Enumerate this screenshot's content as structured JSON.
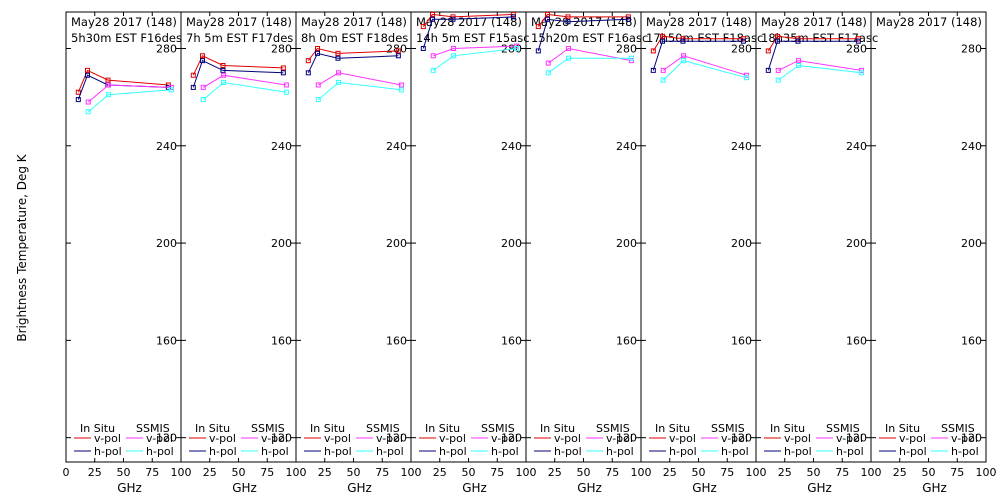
{
  "chart_data": {
    "type": "line",
    "ylabel": "Brightness Temperature, Deg K",
    "xlabel": "GHz",
    "xlim": [
      0,
      100
    ],
    "ylim": [
      110,
      295
    ],
    "xticks": [
      "0",
      "25",
      "50",
      "75",
      "100"
    ],
    "yticks": [
      120,
      160,
      200,
      240,
      280
    ],
    "legend": {
      "in_situ": "In Situ",
      "ssmis": "SSMIS",
      "vpol": "v-pol",
      "hpol": "h-pol"
    },
    "colors": {
      "insitu_v": "#e00000",
      "insitu_h": "#00007a",
      "ssmis_v": "#ff33ff",
      "ssmis_h": "#33ffff"
    },
    "panels": [
      {
        "line1": "May28 2017 (148)",
        "line2": "5h30m EST F16des",
        "insitu_v": {
          "x": [
            10.7,
            18.7,
            36.5,
            89.0
          ],
          "y": [
            262,
            271,
            267,
            265
          ]
        },
        "insitu_h": {
          "x": [
            10.7,
            18.7,
            36.5,
            89.0
          ],
          "y": [
            259,
            269,
            265,
            264
          ]
        },
        "ssmis_v": {
          "x": [
            19.35,
            37.0,
            91.655
          ],
          "y": [
            258,
            265,
            264
          ]
        },
        "ssmis_h": {
          "x": [
            19.35,
            37.0,
            91.655
          ],
          "y": [
            254,
            261,
            263
          ]
        }
      },
      {
        "line1": "May28 2017 (148)",
        "line2": "7h 5m  EST F17des",
        "insitu_v": {
          "x": [
            10.7,
            18.7,
            36.5,
            89.0
          ],
          "y": [
            269,
            277,
            273,
            272
          ]
        },
        "insitu_h": {
          "x": [
            10.7,
            18.7,
            36.5,
            89.0
          ],
          "y": [
            264,
            275,
            271,
            270
          ]
        },
        "ssmis_v": {
          "x": [
            19.35,
            37.0,
            91.655
          ],
          "y": [
            264,
            269,
            265
          ]
        },
        "ssmis_h": {
          "x": [
            19.35,
            37.0,
            91.655
          ],
          "y": [
            259,
            266,
            262
          ]
        }
      },
      {
        "line1": "May28 2017 (148)",
        "line2": "8h 0m  EST F18des",
        "insitu_v": {
          "x": [
            10.7,
            18.7,
            36.5,
            89.0
          ],
          "y": [
            275,
            280,
            278,
            279
          ]
        },
        "insitu_h": {
          "x": [
            10.7,
            18.7,
            36.5,
            89.0
          ],
          "y": [
            270,
            278,
            276,
            277
          ]
        },
        "ssmis_v": {
          "x": [
            19.35,
            37.0,
            91.655
          ],
          "y": [
            265,
            270,
            265
          ]
        },
        "ssmis_h": {
          "x": [
            19.35,
            37.0,
            91.655
          ],
          "y": [
            259,
            266,
            263
          ]
        }
      },
      {
        "line1": "May28 2017 (148)",
        "line2": "14h 5m  EST F15asc",
        "insitu_v": {
          "x": [
            10.7,
            18.7,
            36.5,
            89.0
          ],
          "y": [
            289,
            294,
            293,
            294
          ]
        },
        "insitu_h": {
          "x": [
            10.7,
            18.7,
            36.5,
            89.0
          ],
          "y": [
            280,
            292,
            292,
            293
          ]
        },
        "ssmis_v": {
          "x": [
            19.35,
            37.0,
            91.655
          ],
          "y": [
            277,
            280,
            281
          ]
        },
        "ssmis_h": {
          "x": [
            19.35,
            37.0,
            91.655
          ],
          "y": [
            271,
            277,
            280
          ]
        }
      },
      {
        "line1": "May28 2017 (148)",
        "line2": "15h20m  EST F16asc",
        "insitu_v": {
          "x": [
            10.7,
            18.7,
            36.5,
            89.0
          ],
          "y": [
            289,
            294,
            293,
            293
          ]
        },
        "insitu_h": {
          "x": [
            10.7,
            18.7,
            36.5,
            89.0
          ],
          "y": [
            279,
            292,
            291,
            292
          ]
        },
        "ssmis_v": {
          "x": [
            19.35,
            37.0,
            91.655
          ],
          "y": [
            274,
            280,
            275
          ]
        },
        "ssmis_h": {
          "x": [
            19.35,
            37.0,
            91.655
          ],
          "y": [
            270,
            276,
            276
          ]
        }
      },
      {
        "line1": "May28 2017 (148)",
        "line2": "17h50m  EST F18asc",
        "insitu_v": {
          "x": [
            10.7,
            18.7,
            36.5,
            89.0
          ],
          "y": [
            279,
            285,
            284,
            284
          ]
        },
        "insitu_h": {
          "x": [
            10.7,
            18.7,
            36.5,
            89.0
          ],
          "y": [
            271,
            283,
            283,
            283
          ]
        },
        "ssmis_v": {
          "x": [
            19.35,
            37.0,
            91.655
          ],
          "y": [
            271,
            277,
            269
          ]
        },
        "ssmis_h": {
          "x": [
            19.35,
            37.0,
            91.655
          ],
          "y": [
            267,
            275,
            268
          ]
        }
      },
      {
        "line1": "May28 2017 (148)",
        "line2": "18h35m  EST F17asc",
        "insitu_v": {
          "x": [
            10.7,
            18.7,
            36.5,
            89.0
          ],
          "y": [
            279,
            285,
            284,
            284
          ]
        },
        "insitu_h": {
          "x": [
            10.7,
            18.7,
            36.5,
            89.0
          ],
          "y": [
            271,
            283,
            283,
            283
          ]
        },
        "ssmis_v": {
          "x": [
            19.35,
            37.0,
            91.655
          ],
          "y": [
            271,
            275,
            271
          ]
        },
        "ssmis_h": {
          "x": [
            19.35,
            37.0,
            91.655
          ],
          "y": [
            267,
            273,
            270
          ]
        }
      },
      {
        "line1": "May28 2017 (148)",
        "line2": ""
      }
    ]
  }
}
